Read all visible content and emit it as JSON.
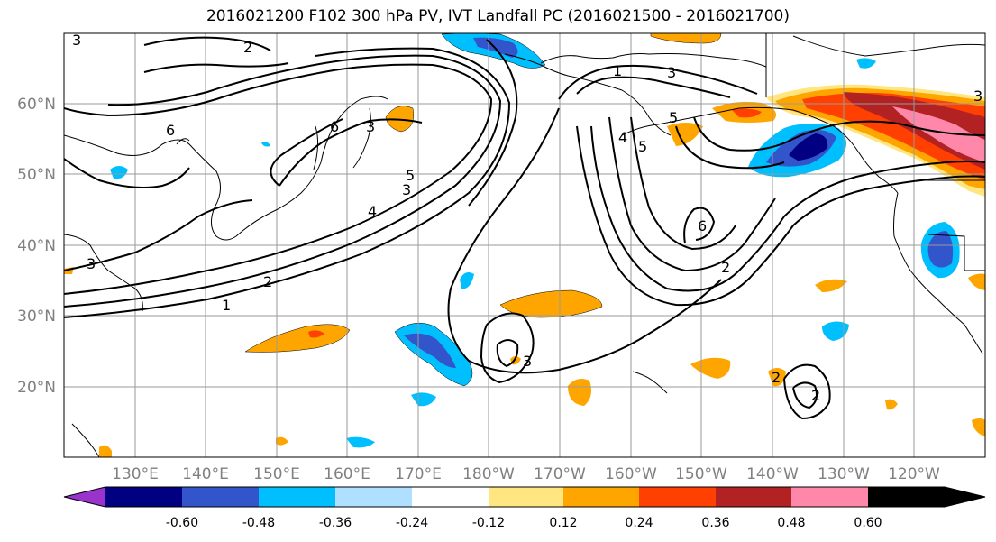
{
  "title": "2016021200 F102 300 hPa PV, IVT Landfall PC (2016021500 - 2016021700)",
  "lat_labels": [
    "60°N",
    "50°N",
    "40°N",
    "30°N",
    "20°N"
  ],
  "lon_labels": [
    "130°E",
    "140°E",
    "150°E",
    "160°E",
    "170°E",
    "180°W",
    "170°W",
    "160°W",
    "150°W",
    "140°W",
    "130°W",
    "120°W"
  ],
  "colorbar": {
    "colors": [
      "#9933cc",
      "#000080",
      "#3355cc",
      "#00bfff",
      "#b0e0ff",
      "#ffffff",
      "#ffe680",
      "#ffa500",
      "#ff4000",
      "#b22222",
      "#ff88aa"
    ],
    "tick_labels": [
      "-0.60",
      "-0.48",
      "-0.36",
      "-0.24",
      "-0.12",
      "0.12",
      "0.24",
      "0.36",
      "0.48",
      "0.60"
    ]
  },
  "contour_labels": [
    "3",
    "2",
    "6",
    "6",
    "3",
    "3",
    "5",
    "4",
    "5",
    "2",
    "1",
    "3",
    "4",
    "5",
    "6",
    "2",
    "3",
    "2",
    "3",
    "1",
    "2",
    "3"
  ]
}
